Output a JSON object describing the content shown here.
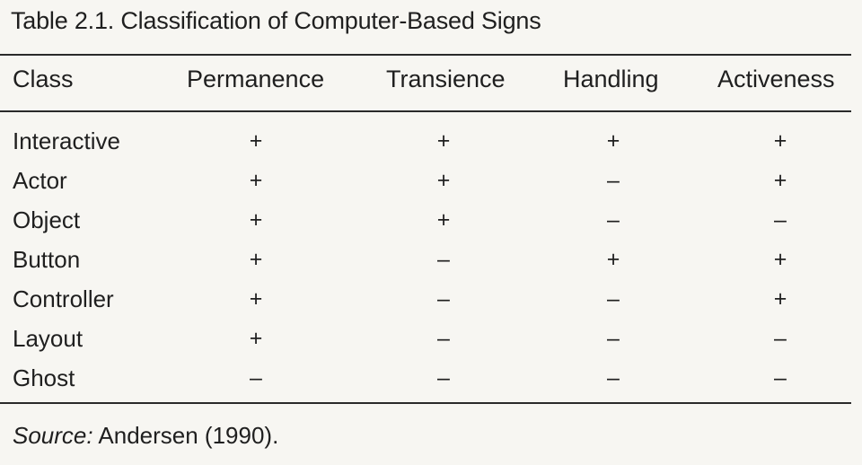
{
  "caption": "Table 2.1. Classification of Computer-Based Signs",
  "headers": {
    "class": "Class",
    "permanence": "Permanence",
    "transience": "Transience",
    "handling": "Handling",
    "activeness": "Activeness"
  },
  "rows": [
    {
      "label": "Interactive",
      "values": [
        "+",
        "+",
        "+",
        "+"
      ]
    },
    {
      "label": "Actor",
      "values": [
        "+",
        "+",
        "–",
        "+"
      ]
    },
    {
      "label": "Object",
      "values": [
        "+",
        "+",
        "–",
        "–"
      ]
    },
    {
      "label": "Button",
      "values": [
        "+",
        "–",
        "+",
        "+"
      ]
    },
    {
      "label": "Controller",
      "values": [
        "+",
        "–",
        "–",
        "+"
      ]
    },
    {
      "label": "Layout",
      "values": [
        "+",
        "–",
        "–",
        "–"
      ]
    },
    {
      "label": "Ghost",
      "values": [
        "–",
        "–",
        "–",
        "–"
      ]
    }
  ],
  "source": {
    "label": "Source:",
    "text": "Andersen (1990)."
  }
}
